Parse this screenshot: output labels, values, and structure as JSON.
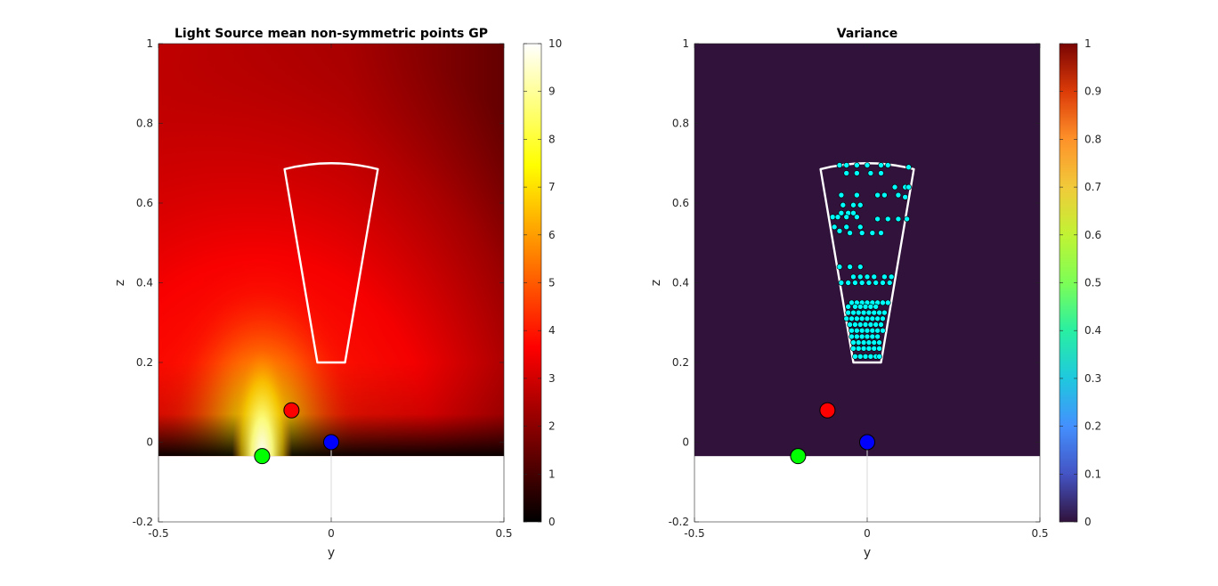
{
  "chart_data": [
    {
      "type": "heatmap",
      "title": "Light Source mean non-symmetric points GP",
      "xlabel": "y",
      "ylabel": "z",
      "xlim": [
        -0.5,
        0.5
      ],
      "ylim": [
        -0.2,
        1
      ],
      "xticks": [
        "-0.5",
        "0",
        "0.5"
      ],
      "yticks": [
        "-0.2",
        "0",
        "0.2",
        "0.4",
        "0.6",
        "0.8",
        "1"
      ],
      "colormap": "hot",
      "clim": [
        0,
        10
      ],
      "colorbar_ticks": [
        "0",
        "1",
        "2",
        "3",
        "4",
        "5",
        "6",
        "7",
        "8",
        "9",
        "10"
      ],
      "heat_source": {
        "y": -0.2,
        "z": -0.035,
        "peak": 10
      },
      "field_bottom_z": -0.035,
      "region_outline": {
        "color": "#ffffff",
        "points": [
          [
            -0.135,
            0.685
          ],
          [
            0.135,
            0.685
          ],
          [
            0.04,
            0.2
          ],
          [
            -0.04,
            0.2
          ]
        ],
        "top_arc_peak_z": 0.7
      },
      "markers": [
        {
          "name": "red",
          "y": -0.115,
          "z": 0.08,
          "color": "#ff0000"
        },
        {
          "name": "blue",
          "y": 0.0,
          "z": 0.0,
          "color": "#0000ff"
        },
        {
          "name": "green",
          "y": -0.2,
          "z": -0.035,
          "color": "#00ff00"
        }
      ],
      "guide_line": {
        "y": 0.0,
        "z_from": -0.2,
        "z_to": 0.0
      }
    },
    {
      "type": "heatmap",
      "title": "Variance",
      "xlabel": "y",
      "ylabel": "z",
      "xlim": [
        -0.5,
        0.5
      ],
      "ylim": [
        -0.2,
        1
      ],
      "xticks": [
        "-0.5",
        "0",
        "0.5"
      ],
      "yticks": [
        "-0.2",
        "0",
        "0.2",
        "0.4",
        "0.6",
        "0.8",
        "1"
      ],
      "colormap": "turbo",
      "clim": [
        0,
        1
      ],
      "colorbar_ticks": [
        "0",
        "0.1",
        "0.2",
        "0.3",
        "0.4",
        "0.5",
        "0.6",
        "0.7",
        "0.8",
        "0.9",
        "1"
      ],
      "background_value_color": "#30123b",
      "field_bottom_z": -0.035,
      "region_outline": {
        "color": "#ffffff",
        "points": [
          [
            -0.135,
            0.685
          ],
          [
            0.135,
            0.685
          ],
          [
            0.04,
            0.2
          ],
          [
            -0.04,
            0.2
          ]
        ],
        "top_arc_peak_z": 0.7
      },
      "markers": [
        {
          "name": "red",
          "y": -0.115,
          "z": 0.08,
          "color": "#ff0000"
        },
        {
          "name": "blue",
          "y": 0.0,
          "z": 0.0,
          "color": "#0000ff"
        },
        {
          "name": "green",
          "y": -0.2,
          "z": -0.035,
          "color": "#00ff00"
        }
      ],
      "guide_line": {
        "y": 0.0,
        "z_from": -0.2,
        "z_to": 0.0
      },
      "sample_points": {
        "color": "#00ffff",
        "points": [
          [
            -0.08,
            0.695
          ],
          [
            -0.06,
            0.695
          ],
          [
            -0.03,
            0.695
          ],
          [
            0.0,
            0.695
          ],
          [
            0.04,
            0.695
          ],
          [
            0.06,
            0.695
          ],
          [
            0.12,
            0.69
          ],
          [
            -0.06,
            0.675
          ],
          [
            -0.03,
            0.675
          ],
          [
            0.01,
            0.675
          ],
          [
            0.04,
            0.675
          ],
          [
            0.08,
            0.64
          ],
          [
            0.11,
            0.64
          ],
          [
            0.12,
            0.64
          ],
          [
            -0.075,
            0.62
          ],
          [
            -0.03,
            0.62
          ],
          [
            0.03,
            0.62
          ],
          [
            0.05,
            0.62
          ],
          [
            0.09,
            0.62
          ],
          [
            0.11,
            0.615
          ],
          [
            -0.07,
            0.595
          ],
          [
            -0.04,
            0.595
          ],
          [
            -0.02,
            0.595
          ],
          [
            -0.075,
            0.575
          ],
          [
            -0.055,
            0.575
          ],
          [
            -0.04,
            0.575
          ],
          [
            -0.1,
            0.565
          ],
          [
            -0.085,
            0.565
          ],
          [
            -0.06,
            0.565
          ],
          [
            -0.03,
            0.565
          ],
          [
            0.03,
            0.56
          ],
          [
            0.06,
            0.56
          ],
          [
            0.09,
            0.56
          ],
          [
            0.115,
            0.56
          ],
          [
            -0.095,
            0.54
          ],
          [
            -0.06,
            0.54
          ],
          [
            -0.02,
            0.54
          ],
          [
            -0.08,
            0.53
          ],
          [
            -0.05,
            0.525
          ],
          [
            -0.015,
            0.525
          ],
          [
            0.015,
            0.525
          ],
          [
            0.04,
            0.525
          ],
          [
            -0.08,
            0.44
          ],
          [
            -0.05,
            0.44
          ],
          [
            -0.02,
            0.44
          ],
          [
            -0.04,
            0.415
          ],
          [
            -0.02,
            0.415
          ],
          [
            0.0,
            0.415
          ],
          [
            0.02,
            0.415
          ],
          [
            0.05,
            0.415
          ],
          [
            0.07,
            0.415
          ],
          [
            -0.075,
            0.4
          ],
          [
            -0.055,
            0.4
          ],
          [
            -0.035,
            0.4
          ],
          [
            -0.015,
            0.4
          ],
          [
            0.005,
            0.4
          ],
          [
            0.025,
            0.4
          ],
          [
            0.045,
            0.4
          ],
          [
            0.065,
            0.4
          ],
          [
            -0.045,
            0.35
          ],
          [
            -0.03,
            0.35
          ],
          [
            -0.015,
            0.35
          ],
          [
            0.0,
            0.35
          ],
          [
            0.015,
            0.35
          ],
          [
            0.03,
            0.35
          ],
          [
            0.045,
            0.35
          ],
          [
            0.06,
            0.35
          ],
          [
            -0.055,
            0.34
          ],
          [
            -0.035,
            0.34
          ],
          [
            -0.02,
            0.34
          ],
          [
            -0.005,
            0.34
          ],
          [
            0.01,
            0.34
          ],
          [
            0.025,
            0.34
          ],
          [
            -0.055,
            0.325
          ],
          [
            -0.04,
            0.325
          ],
          [
            -0.025,
            0.325
          ],
          [
            -0.01,
            0.325
          ],
          [
            0.005,
            0.325
          ],
          [
            0.02,
            0.325
          ],
          [
            0.035,
            0.325
          ],
          [
            0.05,
            0.325
          ],
          [
            -0.06,
            0.31
          ],
          [
            -0.045,
            0.31
          ],
          [
            -0.03,
            0.31
          ],
          [
            -0.015,
            0.31
          ],
          [
            0.0,
            0.31
          ],
          [
            0.015,
            0.31
          ],
          [
            0.03,
            0.31
          ],
          [
            0.045,
            0.31
          ],
          [
            -0.05,
            0.295
          ],
          [
            -0.035,
            0.295
          ],
          [
            -0.02,
            0.295
          ],
          [
            -0.005,
            0.295
          ],
          [
            0.01,
            0.295
          ],
          [
            0.025,
            0.295
          ],
          [
            0.04,
            0.295
          ],
          [
            -0.045,
            0.28
          ],
          [
            -0.03,
            0.28
          ],
          [
            -0.015,
            0.28
          ],
          [
            0.0,
            0.28
          ],
          [
            0.015,
            0.28
          ],
          [
            0.03,
            0.28
          ],
          [
            0.045,
            0.28
          ],
          [
            -0.045,
            0.265
          ],
          [
            -0.03,
            0.265
          ],
          [
            -0.015,
            0.265
          ],
          [
            0.0,
            0.265
          ],
          [
            0.015,
            0.265
          ],
          [
            0.03,
            0.265
          ],
          [
            -0.04,
            0.25
          ],
          [
            -0.025,
            0.25
          ],
          [
            -0.01,
            0.25
          ],
          [
            0.005,
            0.25
          ],
          [
            0.02,
            0.25
          ],
          [
            0.035,
            0.25
          ],
          [
            -0.04,
            0.235
          ],
          [
            -0.025,
            0.235
          ],
          [
            -0.01,
            0.235
          ],
          [
            0.005,
            0.235
          ],
          [
            0.02,
            0.235
          ],
          [
            0.035,
            0.235
          ],
          [
            -0.035,
            0.215
          ],
          [
            -0.02,
            0.215
          ],
          [
            -0.005,
            0.215
          ],
          [
            0.01,
            0.215
          ],
          [
            0.025,
            0.215
          ],
          [
            0.035,
            0.215
          ]
        ]
      }
    }
  ]
}
